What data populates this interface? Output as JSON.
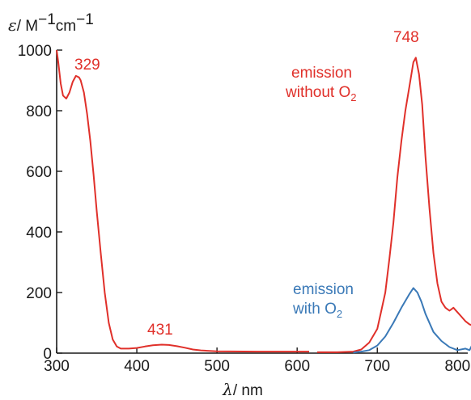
{
  "chart_data": {
    "type": "line",
    "y_axis_title": {
      "symbol": "ε",
      "unit": "/ M",
      "sup1": "−1",
      "unit2": "cm",
      "sup2": "−1"
    },
    "x_axis_title": {
      "symbol": "λ",
      "unit": "/ nm"
    },
    "xlim": [
      300,
      825
    ],
    "ylim": [
      0,
      1000
    ],
    "x_ticks": [
      300,
      400,
      500,
      600,
      700,
      800
    ],
    "y_ticks": [
      0,
      200,
      400,
      600,
      800,
      1000
    ],
    "grid": false,
    "series": [
      {
        "color": "#e0302a",
        "x": [
          300,
          302,
          305,
          308,
          312,
          316,
          320,
          324,
          328,
          330,
          334,
          338,
          342,
          346,
          350,
          355,
          360,
          365,
          370,
          375,
          380,
          390,
          400,
          410,
          420,
          431,
          440,
          450,
          460,
          470,
          480,
          500,
          550,
          600,
          615
        ],
        "y": [
          1000,
          960,
          890,
          850,
          840,
          860,
          895,
          915,
          910,
          900,
          860,
          790,
          700,
          590,
          470,
          330,
          200,
          100,
          45,
          22,
          15,
          15,
          17,
          22,
          26,
          28,
          27,
          23,
          18,
          12,
          9,
          6,
          5,
          5,
          5
        ]
      },
      {
        "color": "#e0302a",
        "x": [
          625,
          650,
          670,
          680,
          690,
          700,
          705,
          710,
          715,
          720,
          725,
          730,
          735,
          740,
          745,
          748,
          752,
          756,
          760,
          765,
          770,
          775,
          780,
          785,
          790,
          795,
          800,
          805,
          810,
          815,
          820,
          822
        ],
        "y": [
          3,
          3,
          5,
          12,
          35,
          80,
          140,
          200,
          310,
          430,
          580,
          700,
          800,
          880,
          960,
          975,
          920,
          820,
          650,
          480,
          330,
          230,
          170,
          150,
          140,
          150,
          135,
          120,
          105,
          95,
          90,
          145
        ]
      },
      {
        "color": "#3a79b7",
        "x": [
          670,
          680,
          690,
          700,
          710,
          720,
          730,
          740,
          745,
          750,
          755,
          760,
          770,
          780,
          790,
          800,
          810,
          815,
          820,
          823
        ],
        "y": [
          2,
          5,
          10,
          25,
          55,
          100,
          150,
          195,
          215,
          200,
          170,
          130,
          70,
          40,
          20,
          10,
          15,
          10,
          35,
          55
        ]
      }
    ],
    "annotations": {
      "peak_329": "329",
      "peak_431": "431",
      "peak_748": "748",
      "emission_red_line1": "emission",
      "emission_red_line2": "without O",
      "emission_red_sub": "2",
      "emission_blue_line1": "emission",
      "emission_blue_line2": "with O",
      "emission_blue_sub": "2"
    },
    "colors": {
      "absorption": "#e0302a",
      "emission_without_o2": "#e0302a",
      "emission_with_o2": "#3a79b7"
    }
  }
}
